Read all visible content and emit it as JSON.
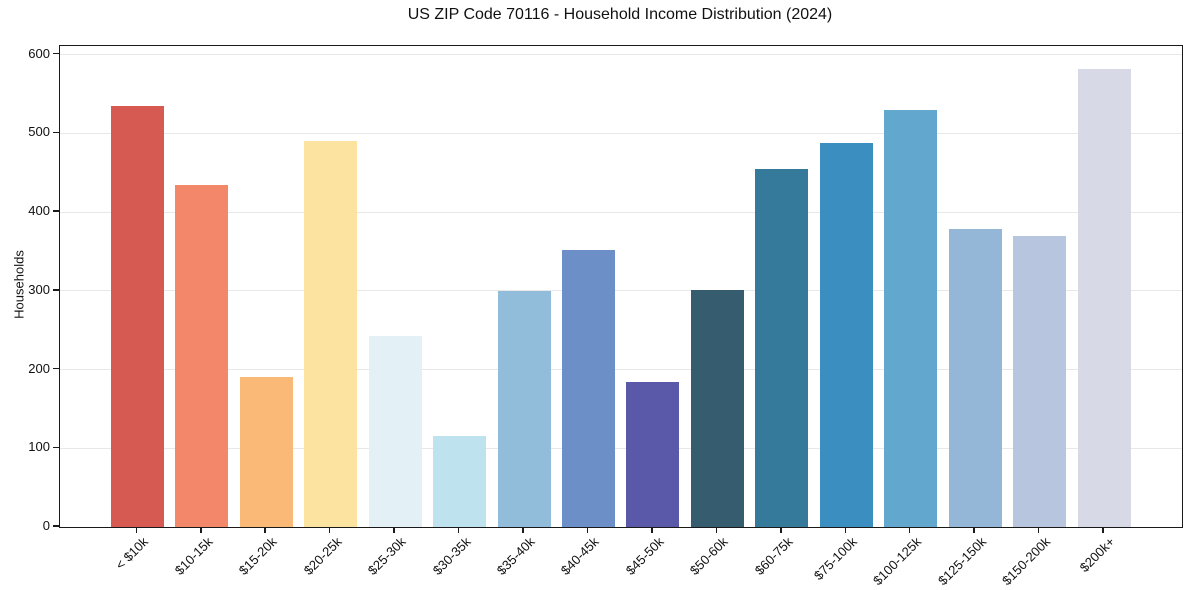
{
  "chart_data": {
    "type": "bar",
    "title": "US ZIP Code 70116 - Household Income Distribution (2024)",
    "xlabel": "",
    "ylabel": "Households",
    "categories": [
      "< $10k",
      "$10-15k",
      "$15-20k",
      "$20-25k",
      "$25-30k",
      "$30-35k",
      "$35-40k",
      "$40-45k",
      "$45-50k",
      "$50-60k",
      "$60-75k",
      "$75-100k",
      "$100-125k",
      "$125-150k",
      "$150-200k",
      "$200k+"
    ],
    "values": [
      535,
      434,
      190,
      490,
      243,
      115,
      300,
      352,
      184,
      301,
      455,
      488,
      530,
      378,
      370,
      582
    ],
    "bar_colors": [
      "#d65a52",
      "#f28869",
      "#fbb977",
      "#fde3a0",
      "#e3f1f6",
      "#bee3ee",
      "#91bddb",
      "#6d8fc8",
      "#5a58a8",
      "#365c6f",
      "#35799b",
      "#3a8ec0",
      "#62a7cd",
      "#94b7d7",
      "#b7c6de",
      "#d8d9e6"
    ],
    "yticks": [
      0,
      100,
      200,
      300,
      400,
      500,
      600
    ],
    "ylim": [
      0,
      611
    ],
    "grid": "horizontal",
    "grid_color": "#e8e8e8",
    "legend": false,
    "background": "#ffffff",
    "x_tick_rotation": 45
  }
}
